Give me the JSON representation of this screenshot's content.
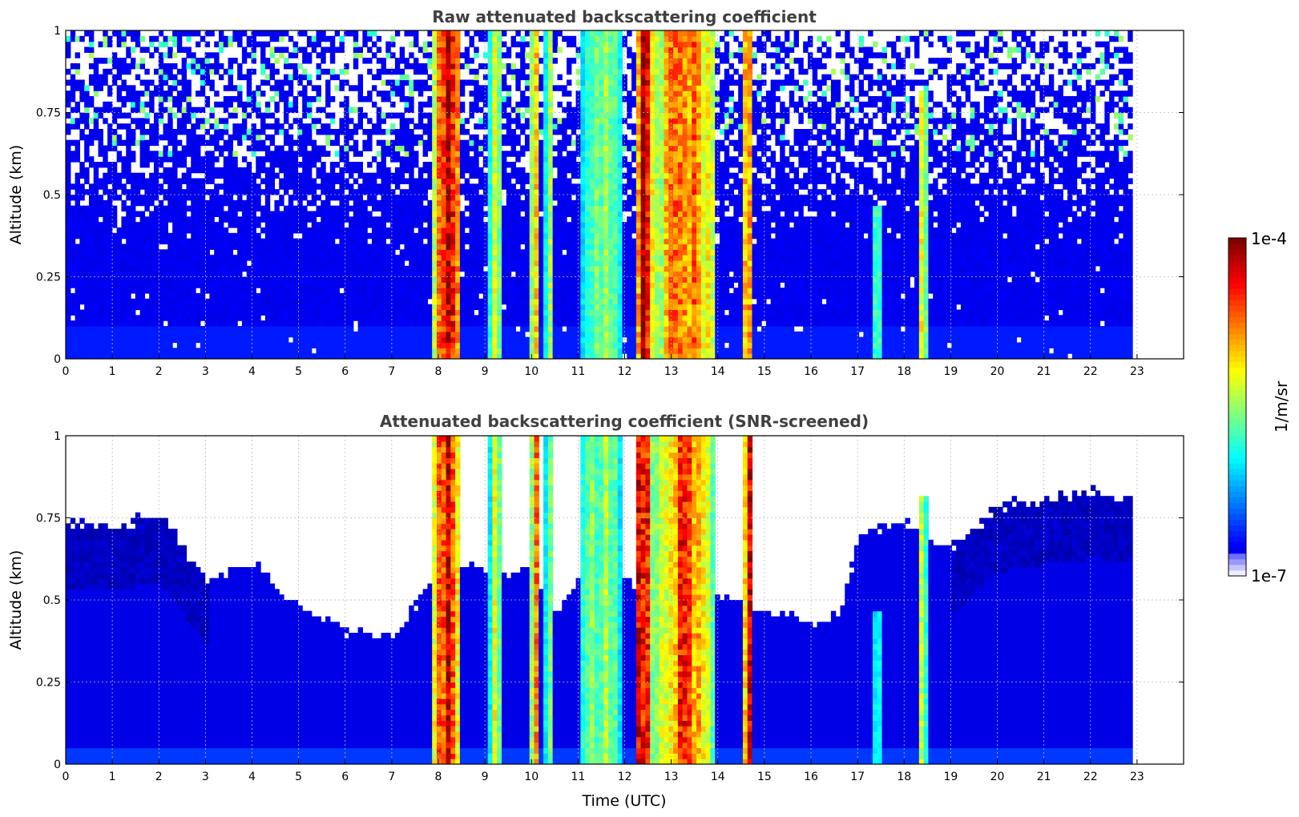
{
  "chart_data": [
    {
      "type": "heatmap",
      "title": "Raw attenuated backscattering coefficient",
      "xlabel": "",
      "ylabel": "Altitude (km)",
      "xlim": [
        0,
        24
      ],
      "ylim": [
        0,
        1
      ],
      "xticks": [
        "0",
        "1",
        "2",
        "3",
        "4",
        "5",
        "6",
        "7",
        "8",
        "9",
        "10",
        "11",
        "12",
        "13",
        "14",
        "15",
        "16",
        "17",
        "18",
        "19",
        "20",
        "21",
        "22",
        "23"
      ],
      "yticks": [
        "0",
        "0.25",
        "0.5",
        "0.75",
        "1"
      ],
      "grid": true,
      "data_end_hour": 22.9,
      "noise_level": "high",
      "cloud_columns": [
        {
          "start": 7.85,
          "end": 8.45,
          "top": 1.0,
          "peak": 0.95
        },
        {
          "start": 9.05,
          "end": 9.35,
          "top": 1.0,
          "peak": 0.6
        },
        {
          "start": 9.95,
          "end": 10.15,
          "top": 1.0,
          "peak": 0.75
        },
        {
          "start": 10.25,
          "end": 10.4,
          "top": 1.0,
          "peak": 0.6
        },
        {
          "start": 11.0,
          "end": 11.9,
          "top": 1.0,
          "peak": 0.5
        },
        {
          "start": 12.15,
          "end": 12.55,
          "top": 1.0,
          "peak": 0.97
        },
        {
          "start": 12.6,
          "end": 13.9,
          "top": 1.0,
          "peak": 0.8
        },
        {
          "start": 14.5,
          "end": 14.7,
          "top": 1.0,
          "peak": 0.9
        },
        {
          "start": 17.3,
          "end": 17.45,
          "top": 0.45,
          "peak": 0.45
        },
        {
          "start": 18.25,
          "end": 18.45,
          "top": 0.8,
          "peak": 0.6
        }
      ]
    },
    {
      "type": "heatmap",
      "title": "Attenuated backscattering coefficient (SNR-screened)",
      "xlabel": "Time (UTC)",
      "ylabel": "Altitude (km)",
      "xlim": [
        0,
        24
      ],
      "ylim": [
        0,
        1
      ],
      "xticks": [
        "0",
        "1",
        "2",
        "3",
        "4",
        "5",
        "6",
        "7",
        "8",
        "9",
        "10",
        "11",
        "12",
        "13",
        "14",
        "15",
        "16",
        "17",
        "18",
        "19",
        "20",
        "21",
        "22",
        "23"
      ],
      "yticks": [
        "0",
        "0.25",
        "0.5",
        "0.75",
        "1"
      ],
      "grid": true,
      "data_end_hour": 22.9,
      "noise_level": "screened",
      "cloud_columns": [
        {
          "start": 7.85,
          "end": 8.45,
          "top": 1.0,
          "peak": 0.95
        },
        {
          "start": 9.05,
          "end": 9.35,
          "top": 1.0,
          "peak": 0.6
        },
        {
          "start": 9.95,
          "end": 10.15,
          "top": 1.0,
          "peak": 0.75
        },
        {
          "start": 10.25,
          "end": 10.4,
          "top": 1.0,
          "peak": 0.6
        },
        {
          "start": 11.0,
          "end": 11.9,
          "top": 1.0,
          "peak": 0.5
        },
        {
          "start": 12.15,
          "end": 12.55,
          "top": 1.0,
          "peak": 0.97
        },
        {
          "start": 12.6,
          "end": 13.9,
          "top": 1.0,
          "peak": 0.8
        },
        {
          "start": 14.5,
          "end": 14.7,
          "top": 1.0,
          "peak": 0.9
        },
        {
          "start": 17.3,
          "end": 17.45,
          "top": 0.45,
          "peak": 0.45
        },
        {
          "start": 18.25,
          "end": 18.45,
          "top": 0.8,
          "peak": 0.6
        }
      ],
      "screen_top_profile": [
        [
          0,
          0.72
        ],
        [
          1,
          0.72
        ],
        [
          2,
          0.75
        ],
        [
          3,
          0.55
        ],
        [
          4,
          0.6
        ],
        [
          4.7,
          0.5
        ],
        [
          5,
          0.47
        ],
        [
          6,
          0.4
        ],
        [
          7,
          0.38
        ],
        [
          7.8,
          0.55
        ],
        [
          8.5,
          0.6
        ],
        [
          9.3,
          0.55
        ],
        [
          9.8,
          0.6
        ],
        [
          10.5,
          0.45
        ],
        [
          11,
          0.55
        ],
        [
          12,
          0.55
        ],
        [
          14,
          0.5
        ],
        [
          15,
          0.45
        ],
        [
          16,
          0.42
        ],
        [
          16.6,
          0.45
        ],
        [
          17,
          0.7
        ],
        [
          18,
          0.72
        ],
        [
          19,
          0.65
        ],
        [
          20,
          0.78
        ],
        [
          21,
          0.8
        ],
        [
          22,
          0.82
        ],
        [
          22.9,
          0.8
        ]
      ]
    }
  ],
  "colorbar": {
    "label": "1/m/sr",
    "max_label": "1e-4",
    "min_label": "1e-7",
    "colormap": "jet"
  }
}
